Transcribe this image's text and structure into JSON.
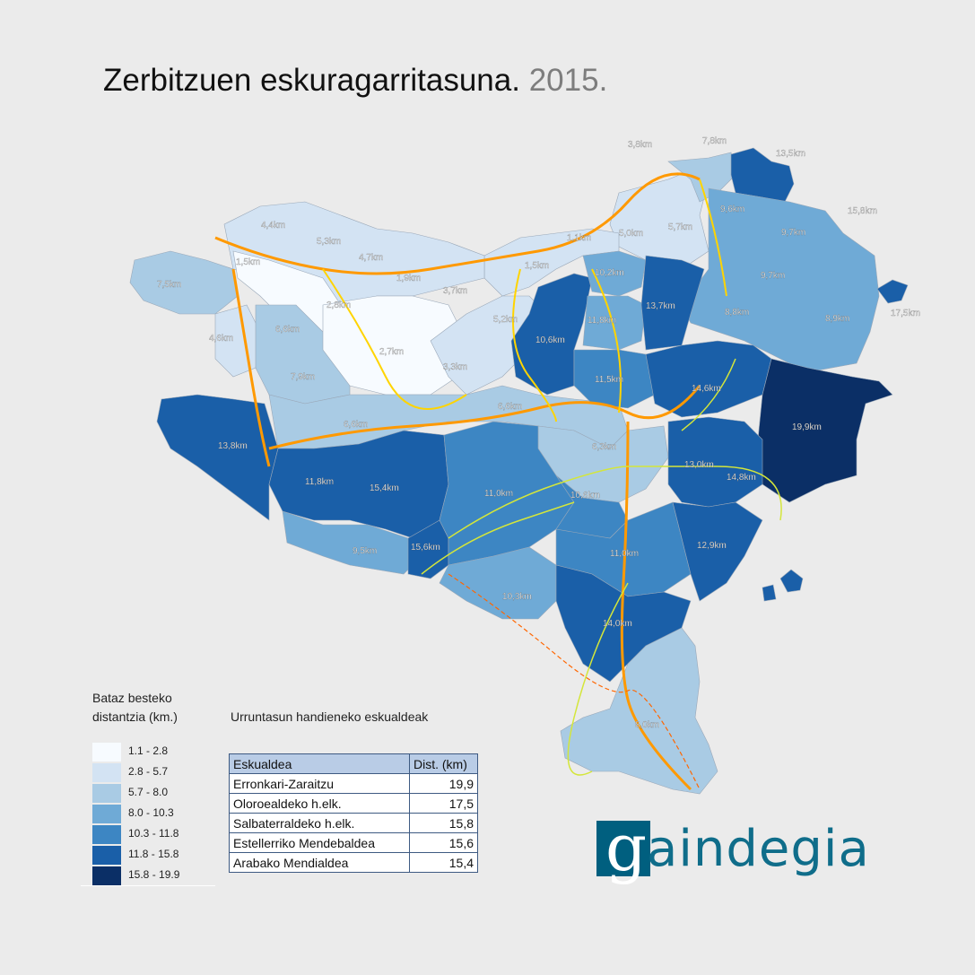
{
  "title": {
    "main": "Zerbitzuen eskuragarritasuna.",
    "year": "2015."
  },
  "colors": {
    "class1": "#f7fbff",
    "class2": "#d3e3f3",
    "class3": "#a9cbe4",
    "class4": "#6faad6",
    "class5": "#3d86c3",
    "class6": "#1a5fa8",
    "class7": "#0b2f66",
    "road_main": "#ff9900",
    "road_secondary": "#ffd400",
    "road_local": "#d4e63a",
    "rail": "#ff6600"
  },
  "map": {
    "labels": [
      {
        "text": "3,8km"
      },
      {
        "text": "7,8km"
      },
      {
        "text": "13,5km"
      },
      {
        "text": "15,8km"
      },
      {
        "text": "17,5km"
      },
      {
        "text": "9,6km"
      },
      {
        "text": "9,7km"
      },
      {
        "text": "9,7km"
      },
      {
        "text": "8,9km"
      },
      {
        "text": "8,8km"
      },
      {
        "text": "5,0km"
      },
      {
        "text": "5,7km"
      },
      {
        "text": "1,1km"
      },
      {
        "text": "1,5km"
      },
      {
        "text": "10,2km"
      },
      {
        "text": "13,7km"
      },
      {
        "text": "11,8km"
      },
      {
        "text": "10,6km"
      },
      {
        "text": "11,5km"
      },
      {
        "text": "14,6km"
      },
      {
        "text": "19,9km"
      },
      {
        "text": "4,4km"
      },
      {
        "text": "5,3km"
      },
      {
        "text": "4,7km"
      },
      {
        "text": "1,5km"
      },
      {
        "text": "7,5km"
      },
      {
        "text": "1,9km"
      },
      {
        "text": "3,7km"
      },
      {
        "text": "2,8km"
      },
      {
        "text": "5,2km"
      },
      {
        "text": "6,6km"
      },
      {
        "text": "4,6km"
      },
      {
        "text": "2,7km"
      },
      {
        "text": "3,3km"
      },
      {
        "text": "7,9km"
      },
      {
        "text": "6,6km"
      },
      {
        "text": "6,6km"
      },
      {
        "text": "13,8km"
      },
      {
        "text": "6,3km"
      },
      {
        "text": "13,0km"
      },
      {
        "text": "14,8km"
      },
      {
        "text": "11,8km"
      },
      {
        "text": "15,4km"
      },
      {
        "text": "11,0km"
      },
      {
        "text": "10,6km"
      },
      {
        "text": "9,5km"
      },
      {
        "text": "15,6km"
      },
      {
        "text": "11,0km"
      },
      {
        "text": "12,9km"
      },
      {
        "text": "10,3km"
      },
      {
        "text": "14,0km"
      },
      {
        "text": "8,0km"
      }
    ]
  },
  "legend": {
    "title_line1": "Bataz besteko",
    "title_line2": "distantzia (km.)",
    "classes": [
      {
        "range": "1.1 - 2.8",
        "color": "#f7fbff"
      },
      {
        "range": "2.8 - 5.7",
        "color": "#d3e3f3"
      },
      {
        "range": "5.7 - 8.0",
        "color": "#a9cbe4"
      },
      {
        "range": "8.0 - 10.3",
        "color": "#6faad6"
      },
      {
        "range": "10.3 - 11.8",
        "color": "#3d86c3"
      },
      {
        "range": "11.8 - 15.8",
        "color": "#1a5fa8"
      },
      {
        "range": "15.8 - 19.9",
        "color": "#0b2f66"
      }
    ]
  },
  "ranking": {
    "title": "Urruntasun handieneko eskualdeak",
    "headers": [
      "Eskualdea",
      "Dist. (km)"
    ],
    "rows": [
      {
        "name": "Erronkari-Zaraitzu",
        "value": "19,9"
      },
      {
        "name": "Oloroealdeko h.elk.",
        "value": "17,5"
      },
      {
        "name": "Salbaterraldeko h.elk.",
        "value": "15,8"
      },
      {
        "name": "Estellerriko Mendebaldea",
        "value": "15,6"
      },
      {
        "name": "Arabako Mendialdea",
        "value": "15,4"
      }
    ]
  },
  "logo": {
    "text": "aindegia",
    "icon": "g-letter-icon"
  }
}
